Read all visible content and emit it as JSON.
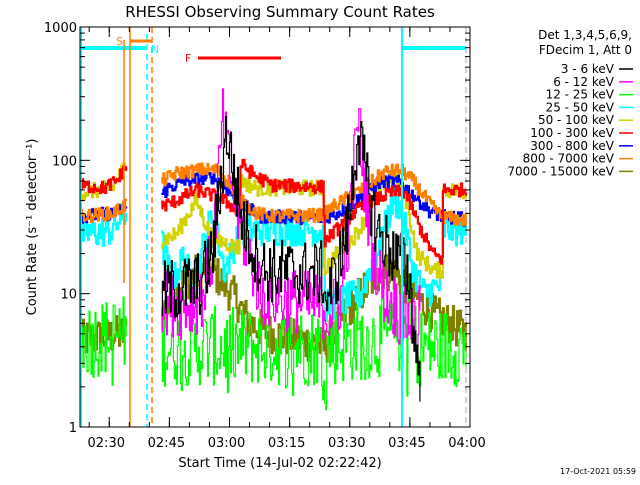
{
  "chart_data": {
    "type": "line",
    "title": "RHESSI Observing Summary Count Rates",
    "xlabel": "Start Time (14-Jul-02 02:22:42)",
    "ylabel": "Count Rate (s⁻¹ detector⁻¹)",
    "x_units": "minutes since 02:22:42",
    "xlim": [
      0,
      97.3
    ],
    "ylim": [
      1,
      1000
    ],
    "yscale": "log",
    "y_ticks": [
      {
        "value": 1,
        "label": "1"
      },
      {
        "value": 10,
        "label": "10"
      },
      {
        "value": 100,
        "label": "100"
      },
      {
        "value": 1000,
        "label": "1000"
      }
    ],
    "x_ticks": [
      {
        "value": 7.3,
        "label": "02:30"
      },
      {
        "value": 22.3,
        "label": "02:45"
      },
      {
        "value": 37.3,
        "label": "03:00"
      },
      {
        "value": 52.3,
        "label": "03:15"
      },
      {
        "value": 67.3,
        "label": "03:30"
      },
      {
        "value": 82.3,
        "label": "03:45"
      },
      {
        "value": 97.3,
        "label": "04:00"
      }
    ],
    "legend": {
      "placement": "right",
      "header": [
        "Det 1,3,4,5,6,9,",
        "FDecim 1, Att 0"
      ]
    },
    "series": [
      {
        "name": "3 - 6 keV",
        "color": "#000000",
        "noise": 0.25,
        "segments": [
          [
            [
              20.3,
              10
            ],
            [
              25,
              11
            ],
            [
              30,
              12
            ],
            [
              33,
              20
            ],
            [
              36.5,
              170
            ],
            [
              38,
              90
            ],
            [
              40,
              40
            ],
            [
              43,
              22
            ],
            [
              46,
              15
            ],
            [
              60.7,
              14
            ],
            [
              61,
              9
            ],
            [
              64,
              14
            ],
            [
              67,
              35
            ],
            [
              69.3,
              170
            ],
            [
              71,
              80
            ],
            [
              74,
              30
            ],
            [
              78,
              20
            ],
            [
              82,
              14
            ],
            [
              83.5,
              4
            ],
            [
              85,
              2.5
            ]
          ]
        ]
      },
      {
        "name": "6 - 12 keV",
        "color": "#ff00ff",
        "noise": 0.25,
        "segments": [
          [
            [
              20.3,
              9
            ],
            [
              25,
              8
            ],
            [
              30,
              9
            ],
            [
              33,
              20
            ],
            [
              35.5,
              200
            ],
            [
              37,
              100
            ],
            [
              39,
              40
            ],
            [
              42,
              20
            ],
            [
              45,
              10
            ],
            [
              60.7,
              8
            ],
            [
              62,
              7
            ],
            [
              65,
              9
            ],
            [
              67,
              30
            ],
            [
              69.3,
              220
            ],
            [
              71,
              60
            ],
            [
              73,
              20
            ],
            [
              76,
              10
            ],
            [
              80,
              7
            ],
            [
              84,
              6
            ],
            [
              85,
              7
            ]
          ]
        ]
      },
      {
        "name": "12 - 25 keV",
        "color": "#00ff00",
        "noise": 0.3,
        "segments": [
          [
            [
              0,
              4.5
            ],
            [
              11.5,
              5
            ]
          ],
          [
            [
              20.3,
              4
            ],
            [
              60,
              4
            ],
            [
              61,
              2
            ],
            [
              62,
              4
            ],
            [
              80,
              5
            ],
            [
              82,
              7
            ],
            [
              84,
              4
            ],
            [
              96.5,
              4
            ]
          ]
        ]
      },
      {
        "name": "25 - 50 keV",
        "color": "#00ffff",
        "noise": 0.12,
        "segments": [
          [
            [
              0,
              28
            ],
            [
              8,
              30
            ],
            [
              11.5,
              42
            ]
          ],
          [
            [
              20.3,
              24
            ],
            [
              23,
              12
            ],
            [
              26,
              20
            ],
            [
              28,
              10
            ],
            [
              31,
              25
            ],
            [
              33,
              40
            ],
            [
              36,
              15
            ],
            [
              40,
              30
            ],
            [
              60.7,
              30
            ],
            [
              61,
              8
            ],
            [
              66,
              9
            ],
            [
              70,
              10
            ],
            [
              75,
              25
            ],
            [
              78,
              50
            ],
            [
              80,
              45
            ],
            [
              83,
              15
            ],
            [
              86,
              10
            ],
            [
              90.3,
              12
            ],
            [
              90.5,
              30
            ],
            [
              96.5,
              30
            ]
          ]
        ]
      },
      {
        "name": "50 - 100 keV",
        "color": "#d2d200",
        "noise": 0.06,
        "segments": [
          [
            [
              0,
              57
            ],
            [
              8,
              62
            ],
            [
              11.5,
              95
            ]
          ],
          [
            [
              20.3,
              25
            ],
            [
              24,
              28
            ],
            [
              28,
              45
            ],
            [
              29,
              50
            ],
            [
              31,
              35
            ],
            [
              33,
              26
            ],
            [
              39.7,
              22
            ],
            [
              40,
              70
            ],
            [
              44,
              62
            ],
            [
              60.7,
              62
            ],
            [
              60.9,
              15
            ],
            [
              64,
              20
            ],
            [
              68,
              26
            ],
            [
              70,
              32
            ],
            [
              73,
              50
            ],
            [
              76,
              70
            ],
            [
              79,
              75
            ],
            [
              81,
              55
            ],
            [
              84,
              20
            ],
            [
              88,
              15
            ],
            [
              90.3,
              15
            ],
            [
              90.5,
              60
            ],
            [
              96.5,
              58
            ]
          ]
        ]
      },
      {
        "name": "100 - 300 keV",
        "color": "#ff0000",
        "noise": 0.05,
        "segments": [
          [
            [
              0,
              65
            ],
            [
              6,
              62
            ],
            [
              9,
              70
            ],
            [
              11.5,
              90
            ]
          ],
          [
            [
              20.3,
              45
            ],
            [
              24,
              50
            ],
            [
              29,
              60
            ],
            [
              35,
              52
            ],
            [
              38,
              45
            ],
            [
              39.7,
              40
            ],
            [
              40,
              95
            ],
            [
              44,
              75
            ],
            [
              48,
              65
            ],
            [
              60.7,
              63
            ],
            [
              60.9,
              25
            ],
            [
              65,
              32
            ],
            [
              68,
              40
            ],
            [
              72,
              48
            ],
            [
              78,
              58
            ],
            [
              81,
              58
            ],
            [
              85,
              30
            ],
            [
              88,
              20
            ],
            [
              90.3,
              18
            ],
            [
              90.5,
              60
            ],
            [
              96.5,
              60
            ]
          ]
        ]
      },
      {
        "name": "300 - 800 keV",
        "color": "#0000ff",
        "noise": 0.05,
        "segments": [
          [
            [
              0,
              38
            ],
            [
              8,
              40
            ],
            [
              11.5,
              45
            ]
          ],
          [
            [
              20.3,
              55
            ],
            [
              22,
              62
            ],
            [
              26,
              70
            ],
            [
              33,
              75
            ],
            [
              35,
              68
            ],
            [
              38,
              55
            ],
            [
              41,
              45
            ],
            [
              45,
              38
            ],
            [
              60.7,
              37
            ],
            [
              64,
              40
            ],
            [
              69,
              50
            ],
            [
              75,
              70
            ],
            [
              80,
              68
            ],
            [
              83,
              55
            ],
            [
              87,
              42
            ],
            [
              90,
              38
            ],
            [
              96.5,
              36
            ]
          ]
        ]
      },
      {
        "name": "800 - 7000 keV",
        "color": "#ff8000",
        "noise": 0.05,
        "segments": [
          [
            [
              0,
              38
            ],
            [
              8,
              40
            ],
            [
              11.5,
              47
            ]
          ],
          [
            [
              20.3,
              70
            ],
            [
              24,
              80
            ],
            [
              30,
              85
            ],
            [
              34,
              85
            ],
            [
              37,
              70
            ],
            [
              40,
              50
            ],
            [
              44,
              40
            ],
            [
              48,
              38
            ],
            [
              60.7,
              39
            ],
            [
              63,
              45
            ],
            [
              70,
              60
            ],
            [
              76,
              82
            ],
            [
              80,
              85
            ],
            [
              83,
              70
            ],
            [
              87,
              48
            ],
            [
              90,
              38
            ],
            [
              96.5,
              35
            ]
          ]
        ]
      },
      {
        "name": "7000 - 15000 keV",
        "color": "#808000",
        "noise": 0.15,
        "segments": [
          [
            [
              0,
              4.5
            ],
            [
              11.5,
              5
            ]
          ],
          [
            [
              20.3,
              7
            ],
            [
              24,
              11
            ],
            [
              30,
              15
            ],
            [
              33,
              15
            ],
            [
              39,
              9
            ],
            [
              42,
              6
            ],
            [
              48,
              5
            ],
            [
              55,
              4.5
            ],
            [
              61,
              4
            ],
            [
              66,
              7
            ],
            [
              70,
              10
            ],
            [
              75,
              15
            ],
            [
              79,
              14
            ],
            [
              83,
              10
            ],
            [
              88,
              7
            ],
            [
              96.5,
              5
            ]
          ]
        ]
      }
    ],
    "annotations": {
      "S": {
        "label": "S",
        "color": "#ff8000"
      },
      "N": {
        "label": "N",
        "color": "#00ffff"
      },
      "F": {
        "label": "F",
        "color": "#ff0000"
      }
    }
  },
  "footer": {
    "timestamp": "17-Oct-2021 05:59"
  }
}
